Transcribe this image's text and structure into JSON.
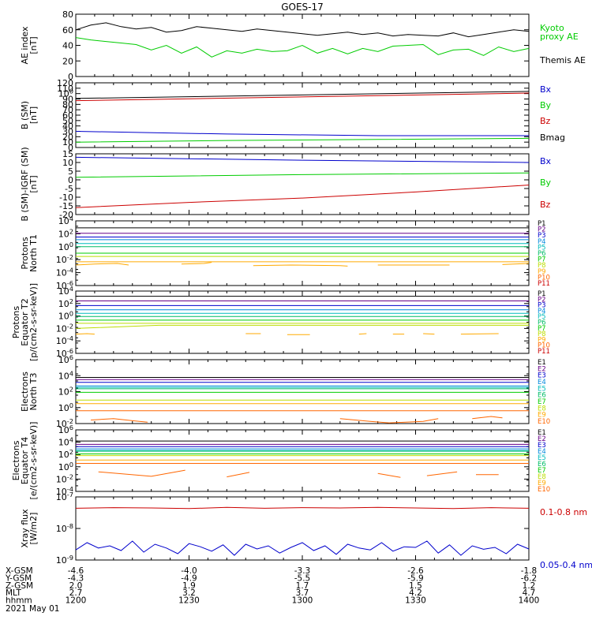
{
  "title": "GOES-17",
  "x_axis": {
    "ticks": [
      "1200",
      "1230",
      "1300",
      "1330",
      "1400"
    ],
    "rows": [
      {
        "label": "X-GSM",
        "values": [
          "-4.6",
          "-4.0",
          "-3.3",
          "-2.6",
          "-1.8"
        ]
      },
      {
        "label": "Y-GSM",
        "values": [
          "-4.3",
          "-4.9",
          "-5.5",
          "-5.9",
          "-6.2"
        ]
      },
      {
        "label": "Z-GSM",
        "values": [
          "2.0",
          "1.9",
          "1.7",
          "1.5",
          "1.2"
        ]
      },
      {
        "label": "MLT",
        "values": [
          "2.7",
          "3.2",
          "3.7",
          "4.2",
          "4.7"
        ]
      },
      {
        "label": "hhmm",
        "values": [
          "1200",
          "1230",
          "1300",
          "1330",
          "1400"
        ]
      }
    ],
    "date": "2021 May 01"
  },
  "colors": {
    "black": "#000000",
    "green": "#00cc00",
    "blue": "#0000cc",
    "red": "#cc0000",
    "kyoto": "#00cc00",
    "bx": "#0000cc",
    "by": "#00cc00",
    "bz": "#cc0000",
    "xlong": "#cc0000",
    "xshort": "#0000cc",
    "P": [
      "#000000",
      "#660088",
      "#0000cc",
      "#0088dd",
      "#00bbbb",
      "#00bb66",
      "#00cc00",
      "#bbdd00",
      "#ffaa00",
      "#ff6600",
      "#cc0000"
    ],
    "E": [
      "#000000",
      "#660088",
      "#0000cc",
      "#0088dd",
      "#00bbbb",
      "#00bb66",
      "#00cc00",
      "#bbdd00",
      "#ffaa00",
      "#ff6600"
    ]
  },
  "chart_data": [
    {
      "id": "ae",
      "type": "line",
      "ylabel": "AE index [nT]",
      "ylim": [
        0,
        80
      ],
      "yticks": [
        "0",
        "20",
        "40",
        "60",
        "80"
      ],
      "series": [
        {
          "name": "Themis AE",
          "color": "black",
          "x": [
            0,
            4,
            8,
            12,
            16,
            20,
            24,
            28,
            32,
            36,
            40,
            44,
            48,
            52,
            56,
            60,
            64,
            68,
            72,
            76,
            80,
            84,
            88,
            92,
            96,
            100,
            104,
            108,
            112,
            116,
            120
          ],
          "values": [
            60,
            66,
            69,
            64,
            61,
            63,
            57,
            59,
            64,
            62,
            60,
            58,
            61,
            59,
            57,
            55,
            53,
            55,
            57,
            54,
            56,
            52,
            54,
            53,
            52,
            56,
            51,
            54,
            57,
            60,
            58
          ]
        },
        {
          "name": "Kyoto proxy AE",
          "color": "kyoto",
          "x": [
            0,
            4,
            8,
            12,
            16,
            20,
            24,
            28,
            32,
            36,
            40,
            44,
            48,
            52,
            56,
            60,
            64,
            68,
            72,
            76,
            80,
            84,
            88,
            92,
            96,
            100,
            104,
            108,
            112,
            116,
            120
          ],
          "values": [
            50,
            47,
            45,
            43,
            41,
            34,
            40,
            30,
            38,
            25,
            33,
            30,
            35,
            32,
            33,
            40,
            30,
            36,
            29,
            36,
            32,
            39,
            40,
            41,
            28,
            34,
            35,
            27,
            38,
            32,
            36
          ]
        }
      ],
      "legend": [
        {
          "text": "Kyoto",
          "color": "kyoto"
        },
        {
          "text": "proxy AE",
          "color": "kyoto"
        },
        {
          "text": "Themis AE",
          "color": "black"
        }
      ]
    },
    {
      "id": "bsm",
      "type": "line",
      "ylabel": "B (SM) [nT]",
      "ylim": [
        0,
        120
      ],
      "yticks": [
        "0",
        "10",
        "20",
        "30",
        "40",
        "50",
        "60",
        "70",
        "80",
        "90",
        "100",
        "110",
        "120"
      ],
      "series": [
        {
          "name": "Bmag",
          "color": "black",
          "x": [
            0,
            120
          ],
          "values": [
            91,
            104
          ]
        },
        {
          "name": "Bz",
          "color": "bz",
          "x": [
            0,
            120
          ],
          "values": [
            87,
            101
          ]
        },
        {
          "name": "Bx",
          "color": "bx",
          "x": [
            0,
            40,
            80,
            120
          ],
          "values": [
            30,
            25,
            22,
            22
          ]
        },
        {
          "name": "By",
          "color": "by",
          "x": [
            0,
            40,
            80,
            120
          ],
          "values": [
            10,
            13,
            15,
            17
          ]
        }
      ],
      "legend": [
        {
          "text": "Bx",
          "color": "bx"
        },
        {
          "text": "By",
          "color": "by"
        },
        {
          "text": "Bz",
          "color": "bz"
        },
        {
          "text": "Bmag",
          "color": "black"
        }
      ]
    },
    {
      "id": "bigrf",
      "type": "line",
      "ylabel": "B (SM)-IGRF (SM) [nT]",
      "ylim": [
        -20,
        15
      ],
      "yticks": [
        "-20",
        "-15",
        "-10",
        "-5",
        "0",
        "5",
        "10",
        "15"
      ],
      "series": [
        {
          "name": "Bx",
          "color": "bx",
          "x": [
            0,
            60,
            120
          ],
          "values": [
            13,
            11.3,
            10
          ]
        },
        {
          "name": "By",
          "color": "by",
          "x": [
            0,
            60,
            120
          ],
          "values": [
            1.5,
            3,
            4
          ]
        },
        {
          "name": "Bz",
          "color": "bz",
          "x": [
            0,
            30,
            60,
            90,
            120
          ],
          "values": [
            -16,
            -13,
            -10.5,
            -7,
            -3
          ]
        }
      ],
      "legend": [
        {
          "text": "Bx",
          "color": "bx"
        },
        {
          "text": "By",
          "color": "by"
        },
        {
          "text": "Bz",
          "color": "bz"
        }
      ]
    },
    {
      "id": "pn",
      "type": "line",
      "log": true,
      "ylabel": "Protons North T1",
      "ylim": [
        -7,
        5
      ],
      "yticks": [
        "10-6",
        "10-4",
        "10-2",
        "100",
        "102",
        "104"
      ],
      "flat_levels": [
        3.7,
        2.7,
        2.0,
        1.5,
        0.8,
        0.2,
        -1.0,
        -1.6,
        -2.6
      ],
      "flat_colors": [
        "P.0",
        "P.1",
        "P.2",
        "P.3",
        "P.4",
        "P.5",
        "P.6",
        "P.7",
        "P.8"
      ],
      "broken": [
        {
          "color": "P.8",
          "segments": [
            [
              [
                0,
                -3.2
              ],
              [
                5,
                -3.0
              ],
              [
                11,
                -2.9
              ],
              [
                14,
                -3.2
              ]
            ],
            [
              [
                28,
                -3.0
              ],
              [
                34,
                -2.9
              ],
              [
                36,
                -2.7
              ]
            ],
            [
              [
                47,
                -3.3
              ],
              [
                57,
                -3.2
              ],
              [
                70,
                -3.3
              ],
              [
                72,
                -3.4
              ]
            ],
            [
              [
                80,
                -3.2
              ],
              [
                90,
                -3.2
              ],
              [
                99,
                -3.2
              ]
            ],
            [
              [
                113,
                -3.1
              ],
              [
                120,
                -2.9
              ]
            ]
          ]
        }
      ],
      "legend": [
        "P1",
        "P2",
        "P3",
        "P4",
        "P5",
        "P6",
        "P7",
        "P8",
        "P9",
        "P10",
        "P11"
      ]
    },
    {
      "id": "pe",
      "type": "line",
      "log": true,
      "ylabel": "Protons Equator T2 [p/(cm2-s-sr-keV)]",
      "ylim": [
        -7,
        5
      ],
      "yticks": [
        "10-6",
        "10-4",
        "10-2",
        "100",
        "102",
        "104"
      ],
      "flat_levels": [
        4.0,
        3.1,
        2.2,
        1.4,
        0.7,
        0.1,
        -0.6,
        -1.2
      ],
      "flat_colors": [
        "P.0",
        "P.1",
        "P.2",
        "P.3",
        "P.4",
        "P.5",
        "P.6",
        "P.7"
      ],
      "broken": [
        {
          "color": "P.7",
          "segments": [
            [
              [
                0,
                -2.2
              ],
              [
                22,
                -1.6
              ],
              [
                48,
                -1.6
              ],
              [
                120,
                -1.6
              ]
            ]
          ]
        },
        {
          "color": "P.8",
          "segments": [
            [
              [
                0,
                -3.3
              ],
              [
                3,
                -3.2
              ],
              [
                5,
                -3.3
              ]
            ],
            [
              [
                45,
                -3.2
              ],
              [
                49,
                -3.2
              ]
            ],
            [
              [
                56,
                -3.4
              ],
              [
                62,
                -3.4
              ]
            ],
            [
              [
                75,
                -3.3
              ],
              [
                77,
                -3.2
              ]
            ],
            [
              [
                84,
                -3.3
              ],
              [
                87,
                -3.3
              ]
            ],
            [
              [
                92,
                -3.2
              ],
              [
                95,
                -3.3
              ]
            ],
            [
              [
                102,
                -3.3
              ],
              [
                112,
                -3.2
              ]
            ]
          ]
        }
      ],
      "legend": [
        "P1",
        "P2",
        "P3",
        "P4",
        "P5",
        "P6",
        "P7",
        "P8",
        "P9",
        "P10",
        "P11"
      ]
    },
    {
      "id": "en",
      "type": "line",
      "log": true,
      "ylabel": "Electrons North T3",
      "ylim": [
        -3,
        6
      ],
      "yticks": [
        "10-2",
        "100",
        "102",
        "104",
        "106"
      ],
      "flat_levels": [
        3.5,
        3.2,
        2.8,
        2.3,
        2.1,
        1.9,
        1.4,
        0.3,
        -0.2,
        -1.2
      ],
      "flat_colors": [
        "E.0",
        "E.1",
        "E.2",
        "E.3",
        "E.4",
        "E.5",
        "E.6",
        "E.7",
        "E.8",
        "E.9"
      ],
      "broken": [
        {
          "color": "E.9",
          "segments": [
            [
              [
                4,
                -2.5
              ],
              [
                10,
                -2.3
              ],
              [
                15,
                -2.6
              ],
              [
                19,
                -2.8
              ]
            ],
            [
              [
                70,
                -2.3
              ],
              [
                78,
                -2.7
              ],
              [
                83,
                -2.9
              ],
              [
                92,
                -2.7
              ],
              [
                96,
                -2.3
              ]
            ],
            [
              [
                105,
                -2.3
              ],
              [
                110,
                -2.0
              ],
              [
                113,
                -2.2
              ]
            ]
          ]
        }
      ],
      "legend": [
        "E1",
        "E2",
        "E3",
        "E4",
        "E5",
        "E6",
        "E7",
        "E8",
        "E9",
        "E10"
      ]
    },
    {
      "id": "ee",
      "type": "line",
      "log": true,
      "ylabel": "Electrons Equator T4 [e/(cm2-s-sr-keV)]",
      "ylim": [
        -5,
        6
      ],
      "yticks": [
        "10-4",
        "10-2",
        "100",
        "102",
        "104",
        "106"
      ],
      "flat_levels": [
        4.0,
        3.4,
        3.0,
        2.6,
        2.3,
        2.2,
        1.7,
        1.4,
        0.6,
        0.0
      ],
      "flat_colors": [
        "E.0",
        "E.1",
        "E.2",
        "E.3",
        "E.4",
        "E.5",
        "E.6",
        "E.7",
        "E.8",
        "E.9"
      ],
      "broken": [
        {
          "color": "E.9",
          "segments": [
            [
              [
                6,
                -1.5
              ],
              [
                20,
                -2.3
              ],
              [
                29,
                -1.2
              ]
            ],
            [
              [
                40,
                -2.4
              ],
              [
                46,
                -1.6
              ]
            ],
            [
              [
                80,
                -1.8
              ],
              [
                86,
                -2.5
              ]
            ],
            [
              [
                93,
                -2.2
              ],
              [
                101,
                -1.5
              ]
            ],
            [
              [
                106,
                -2.0
              ],
              [
                112,
                -2.0
              ]
            ]
          ]
        }
      ],
      "legend": [
        "E1",
        "E2",
        "E3",
        "E4",
        "E5",
        "E6",
        "E7",
        "E8",
        "E9",
        "E10"
      ]
    },
    {
      "id": "xray",
      "type": "line",
      "log": true,
      "ylabel": "Xray flux [W/m2]",
      "ylim": [
        -9,
        -7
      ],
      "yticks": [
        "10-9",
        "10-8",
        "10-7"
      ],
      "series": [
        {
          "name": "0.1-0.8 nm",
          "color": "xlong",
          "x": [
            0,
            10,
            20,
            30,
            40,
            50,
            60,
            70,
            80,
            90,
            100,
            110,
            120
          ],
          "values": [
            -7.36,
            -7.34,
            -7.35,
            -7.37,
            -7.33,
            -7.36,
            -7.34,
            -7.35,
            -7.33,
            -7.35,
            -7.37,
            -7.34,
            -7.36
          ]
        },
        {
          "name": "0.05-0.4 nm",
          "color": "xshort",
          "x": [
            0,
            3,
            6,
            9,
            12,
            15,
            18,
            21,
            24,
            27,
            30,
            33,
            36,
            39,
            42,
            45,
            48,
            51,
            54,
            57,
            60,
            63,
            66,
            69,
            72,
            75,
            78,
            81,
            84,
            87,
            90,
            93,
            96,
            99,
            102,
            105,
            108,
            111,
            114,
            117,
            120
          ],
          "values": [
            -8.68,
            -8.45,
            -8.62,
            -8.55,
            -8.7,
            -8.4,
            -8.75,
            -8.5,
            -8.62,
            -8.8,
            -8.48,
            -8.58,
            -8.72,
            -8.52,
            -8.85,
            -8.5,
            -8.65,
            -8.55,
            -8.78,
            -8.6,
            -8.45,
            -8.7,
            -8.55,
            -8.82,
            -8.5,
            -8.62,
            -8.68,
            -8.45,
            -8.72,
            -8.58,
            -8.6,
            -8.4,
            -8.78,
            -8.52,
            -8.85,
            -8.55,
            -8.66,
            -8.6,
            -8.8,
            -8.5,
            -8.65
          ]
        }
      ],
      "legend": [
        {
          "text": "0.1-0.8 nm",
          "color": "xlong"
        },
        {
          "text": "0.05-0.4 nm",
          "color": "xshort"
        }
      ]
    }
  ]
}
